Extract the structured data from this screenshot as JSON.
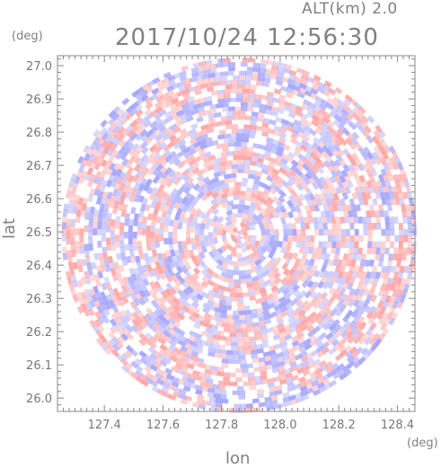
{
  "header": {
    "alt_label": "ALT(km) 2.0",
    "timestamp": "2017/10/24 12:56:30"
  },
  "chart_data": {
    "type": "heatmap",
    "title": "2017/10/24 12:56:30",
    "subtitle": "ALT(km) 2.0",
    "xlabel": "lon",
    "ylabel": "lat",
    "x_unit": "(deg)",
    "y_unit": "(deg)",
    "xlim": [
      127.24,
      128.46
    ],
    "ylim": [
      25.96,
      27.03
    ],
    "x_ticks": [
      127.4,
      127.6,
      127.8,
      128.0,
      128.2,
      128.4
    ],
    "y_ticks": [
      26.0,
      26.1,
      26.2,
      26.3,
      26.4,
      26.5,
      26.6,
      26.7,
      26.8,
      26.9,
      27.0
    ],
    "x_tick_labels": [
      "127.4",
      "127.6",
      "127.8",
      "128.0",
      "128.2",
      "128.4"
    ],
    "y_tick_labels": [
      "26.0",
      "26.1",
      "26.2",
      "26.3",
      "26.4",
      "26.5",
      "26.6",
      "26.7",
      "26.8",
      "26.9",
      "27.0"
    ],
    "grid": false,
    "center": {
      "lon": 127.86,
      "lat": 26.49
    },
    "radius_deg": {
      "lon": 0.6,
      "lat": 0.54
    },
    "colors": {
      "positive": "#ff9a9a",
      "negative": "#9a9aff",
      "neutral": "#ffffff",
      "axis": "#888888"
    }
  }
}
